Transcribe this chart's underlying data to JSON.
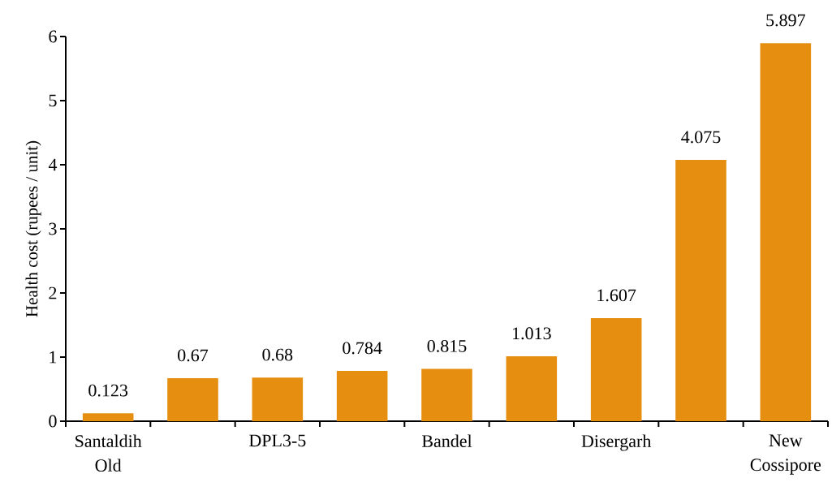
{
  "chart_data": {
    "type": "bar",
    "ylabel": "Health cost (rupees / unit)",
    "categories": [
      "Santaldih Old",
      null,
      "DPL3-5",
      null,
      "Bandel",
      null,
      "Disergarh",
      null,
      "New Cossipore"
    ],
    "values": [
      0.123,
      0.67,
      0.68,
      0.784,
      0.815,
      1.013,
      1.607,
      4.075,
      5.897
    ],
    "value_labels": [
      "0.123",
      "0.67",
      "0.68",
      "0.784",
      "0.815",
      "1.013",
      "1.607",
      "4.075",
      "5.897"
    ],
    "color": "#e58e0f",
    "ylim": [
      0,
      6
    ],
    "yticks": [
      0,
      1,
      2,
      3,
      4,
      5,
      6
    ]
  }
}
